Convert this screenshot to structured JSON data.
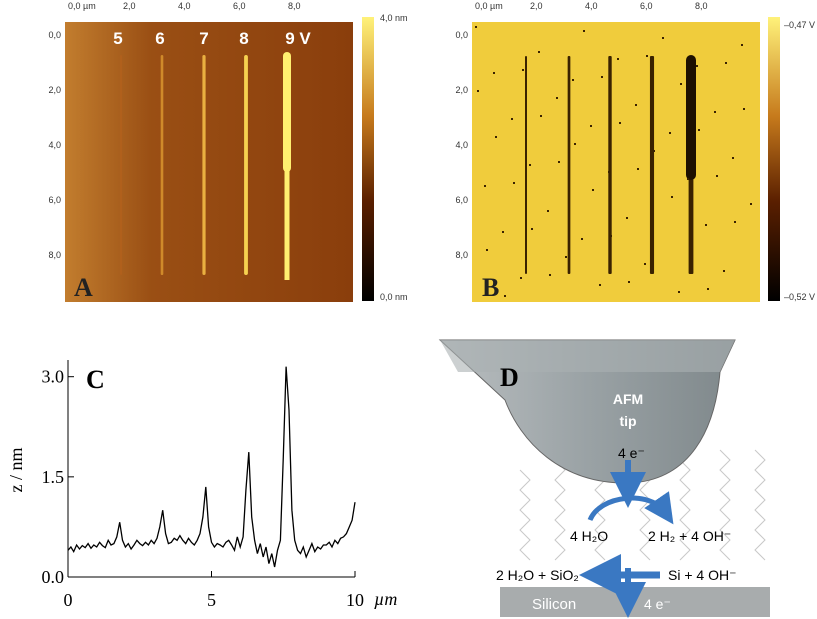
{
  "panels": {
    "A": {
      "label": "A",
      "xticks": [
        "0,0 µm",
        "2,0",
        "4,0",
        "6,0",
        "8,0"
      ],
      "yticks": [
        "0,0",
        "2,0",
        "4,0",
        "6,0",
        "8,0"
      ],
      "scale_top": "4,0 nm",
      "scale_bottom": "0,0 nm",
      "line_labels": [
        "5",
        "6",
        "7",
        "8",
        "9 V"
      ]
    },
    "B": {
      "label": "B",
      "xticks": [
        "0,0 µm",
        "2,0",
        "4,0",
        "6,0",
        "8,0"
      ],
      "yticks": [
        "0,0",
        "2,0",
        "4,0",
        "6,0",
        "8,0"
      ],
      "scale_top": "–0,47 V",
      "scale_bottom": "–0,52 V"
    },
    "D": {
      "label": "D",
      "tip": [
        "AFM",
        "tip"
      ],
      "electrons_in": "4 e⁻",
      "water": "4 H₂O",
      "products": "2 H₂ + 4 OH⁻",
      "oxide": "2 H₂O + SiO₂",
      "silicon_reactants": "Si + 4 OH⁻",
      "substrate": "Silicon",
      "electrons_out": "4 e⁻"
    }
  },
  "chart_data": {
    "type": "line",
    "label": "C",
    "ylabel": "z / nm",
    "xlabel": "µm",
    "color": "#000000",
    "xlim": [
      0,
      10
    ],
    "ylim": [
      0,
      3.25
    ],
    "xticks": [
      0,
      5,
      10
    ],
    "yticks": [
      {
        "value": 0,
        "label": "0.0"
      },
      {
        "value": 1.5,
        "label": "1.5"
      },
      {
        "value": 3,
        "label": "3.0"
      }
    ],
    "x": [
      0,
      0.1,
      0.2,
      0.3,
      0.4,
      0.5,
      0.6,
      0.7,
      0.8,
      0.9,
      1,
      1.1,
      1.2,
      1.3,
      1.4,
      1.5,
      1.6,
      1.7,
      1.8,
      1.9,
      2,
      2.1,
      2.2,
      2.3,
      2.4,
      2.5,
      2.6,
      2.7,
      2.8,
      2.9,
      3,
      3.1,
      3.2,
      3.3,
      3.4,
      3.5,
      3.6,
      3.7,
      3.8,
      3.9,
      4,
      4.1,
      4.2,
      4.3,
      4.4,
      4.5,
      4.6,
      4.7,
      4.8,
      4.9,
      5,
      5.1,
      5.2,
      5.3,
      5.4,
      5.5,
      5.6,
      5.7,
      5.8,
      5.9,
      6,
      6.1,
      6.2,
      6.3,
      6.4,
      6.5,
      6.6,
      6.7,
      6.8,
      6.9,
      7,
      7.1,
      7.2,
      7.3,
      7.4,
      7.5,
      7.6,
      7.7,
      7.8,
      7.9,
      8,
      8.1,
      8.2,
      8.3,
      8.4,
      8.5,
      8.6,
      8.7,
      8.8,
      8.9,
      9,
      9.1,
      9.2,
      9.3,
      9.4,
      9.5,
      9.6,
      9.7,
      9.8,
      9.9,
      10
    ],
    "values": [
      0.4,
      0.45,
      0.38,
      0.48,
      0.42,
      0.47,
      0.44,
      0.5,
      0.43,
      0.48,
      0.45,
      0.52,
      0.47,
      0.44,
      0.55,
      0.48,
      0.5,
      0.6,
      0.82,
      0.55,
      0.45,
      0.5,
      0.42,
      0.48,
      0.55,
      0.5,
      0.47,
      0.52,
      0.48,
      0.55,
      0.5,
      0.58,
      0.75,
      1.0,
      0.65,
      0.5,
      0.52,
      0.58,
      0.55,
      0.62,
      0.55,
      0.5,
      0.58,
      0.52,
      0.48,
      0.55,
      0.65,
      0.9,
      1.35,
      0.75,
      0.52,
      0.45,
      0.5,
      0.48,
      0.45,
      0.52,
      0.55,
      0.48,
      0.4,
      0.6,
      0.45,
      0.6,
      1.3,
      1.87,
      0.9,
      0.55,
      0.35,
      0.5,
      0.3,
      0.45,
      0.2,
      0.35,
      0.15,
      0.4,
      0.55,
      1.8,
      3.15,
      2.5,
      1.0,
      0.55,
      0.4,
      0.35,
      0.45,
      0.3,
      0.4,
      0.5,
      0.38,
      0.45,
      0.42,
      0.48,
      0.48,
      0.52,
      0.45,
      0.55,
      0.5,
      0.58,
      0.6,
      0.65,
      0.75,
      0.85,
      1.12
    ]
  }
}
